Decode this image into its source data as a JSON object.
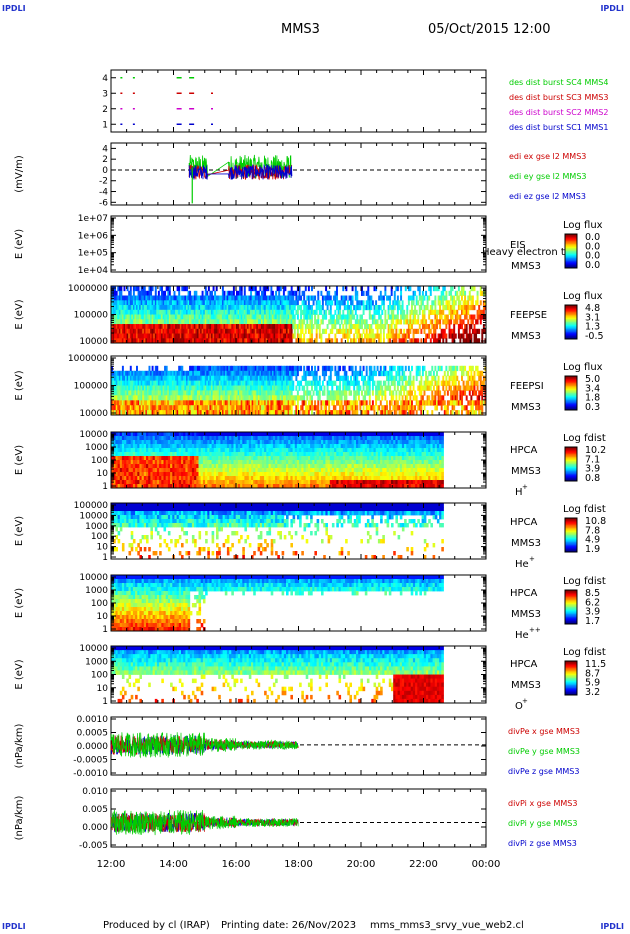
{
  "corners": {
    "top_left": "IPDLI",
    "top_right": "IPDLI",
    "bottom_left": "IPDLI",
    "bottom_right": "IPDLI"
  },
  "header": {
    "spacecraft": "MMS3",
    "datetime": "05/Oct/2015 12:00"
  },
  "footer": {
    "produced": "Produced by cl (IRAP)",
    "printing": "Printing date: 26/Nov/2023",
    "script": "mms_mms3_srvy_vue_web2.cl"
  },
  "colors": {
    "mms1": "#0000cc",
    "mms2": "#cc00cc",
    "mms3": "#cc0000",
    "mms4": "#00cc00",
    "x": "#cc0000",
    "y": "#00cc00",
    "z": "#0000cc"
  },
  "chart_data": [
    {
      "type": "scatter",
      "id": "burst",
      "ylim": [
        0.5,
        4.5
      ],
      "yticks": [
        "1",
        "2",
        "3",
        "4"
      ],
      "series": [
        {
          "name": "des dist burst SC1 MMS1",
          "color": "#0000cc",
          "y": 1,
          "x": [
            12.3,
            12.7,
            14.1,
            14.5,
            15.2
          ]
        },
        {
          "name": "des dist burst SC2 MMS2",
          "color": "#cc00cc",
          "y": 2,
          "x": [
            12.3,
            12.7,
            14.1,
            14.5,
            15.2
          ]
        },
        {
          "name": "des dist burst SC3 MMS3",
          "color": "#cc0000",
          "y": 3,
          "x": [
            12.3,
            12.7,
            14.1,
            14.5,
            15.2
          ]
        },
        {
          "name": "des dist burst SC4 MMS4",
          "color": "#00cc00",
          "y": 4,
          "x": [
            12.3,
            12.7,
            14.1,
            14.5
          ]
        }
      ]
    },
    {
      "type": "line",
      "id": "edi",
      "ylabel": "(mV/m)",
      "ylim": [
        -6.5,
        5
      ],
      "yticks": [
        "4",
        "2",
        "0",
        "-2",
        "-4",
        "-6"
      ],
      "xlim": [
        14.5,
        17.8
      ],
      "series": [
        {
          "name": "edi ex gse l2 MMS3",
          "color": "#cc0000"
        },
        {
          "name": "edi ey gse l2 MMS3",
          "color": "#00cc00"
        },
        {
          "name": "edi ez gse l2 MMS3",
          "color": "#0000cc"
        }
      ]
    },
    {
      "type": "heatmap",
      "id": "eis",
      "ylabel": "E (eV)",
      "yticks": [
        "1e+07",
        "1e+06",
        "1e+05",
        "1e+04"
      ],
      "instrument": "EIS",
      "spacecraft": "MMS3",
      "note": "Heavy electron to",
      "colorbar": {
        "title": "Log flux",
        "ticks": [
          "0.0",
          "0.0",
          "0.0",
          "0.0"
        ]
      }
    },
    {
      "type": "heatmap",
      "id": "feepse",
      "ylabel": "E (eV)",
      "yticks": [
        "1000000",
        "100000",
        "10000"
      ],
      "instrument": "FEEPSE",
      "spacecraft": "MMS3",
      "colorbar": {
        "title": "Log flux",
        "ticks": [
          "4.8",
          "3.1",
          "1.3",
          "-0.5"
        ]
      }
    },
    {
      "type": "heatmap",
      "id": "feepsi",
      "ylabel": "E (eV)",
      "yticks": [
        "1000000",
        "100000",
        "10000"
      ],
      "instrument": "FEEPSI",
      "spacecraft": "MMS3",
      "colorbar": {
        "title": "Log flux",
        "ticks": [
          "5.0",
          "3.4",
          "1.8",
          "0.3"
        ]
      }
    },
    {
      "type": "heatmap",
      "id": "hpca_h",
      "ylabel": "E (eV)",
      "yticks": [
        "10000",
        "1000",
        "100",
        "10",
        "1"
      ],
      "instrument": "HPCA",
      "spacecraft": "MMS3",
      "species": "H",
      "charge": "+",
      "colorbar": {
        "title": "Log fdist",
        "ticks": [
          "10.2",
          "7.1",
          "3.9",
          "0.8"
        ]
      }
    },
    {
      "type": "heatmap",
      "id": "hpca_he",
      "ylabel": "E (eV)",
      "yticks": [
        "100000",
        "10000",
        "1000",
        "100",
        "10",
        "1"
      ],
      "instrument": "HPCA",
      "spacecraft": "MMS3",
      "species": "He",
      "charge": "+",
      "colorbar": {
        "title": "Log fdist",
        "ticks": [
          "10.8",
          "7.8",
          "4.9",
          "1.9"
        ]
      }
    },
    {
      "type": "heatmap",
      "id": "hpca_hepp",
      "ylabel": "E (eV)",
      "yticks": [
        "10000",
        "1000",
        "100",
        "10",
        "1"
      ],
      "instrument": "HPCA",
      "spacecraft": "MMS3",
      "species": "He",
      "charge": "++",
      "colorbar": {
        "title": "Log fdist",
        "ticks": [
          "8.5",
          "6.2",
          "3.9",
          "1.7"
        ]
      }
    },
    {
      "type": "heatmap",
      "id": "hpca_o",
      "ylabel": "E (eV)",
      "yticks": [
        "10000",
        "1000",
        "100",
        "10",
        "1"
      ],
      "instrument": "HPCA",
      "spacecraft": "MMS3",
      "species": "O",
      "charge": "+",
      "colorbar": {
        "title": "Log fdist",
        "ticks": [
          "11.5",
          "8.7",
          "5.9",
          "3.2"
        ]
      }
    },
    {
      "type": "line",
      "id": "divpe",
      "ylabel": "(nPa/km)",
      "yticks": [
        "0.0010",
        "0.0005",
        "0.0000",
        "-0.0005",
        "-0.0010"
      ],
      "xlim": [
        12.0,
        18.0
      ],
      "series": [
        {
          "name": "divPe x gse MMS3",
          "color": "#cc0000"
        },
        {
          "name": "divPe y gse MMS3",
          "color": "#00cc00"
        },
        {
          "name": "divPe z gse MMS3",
          "color": "#0000cc"
        }
      ]
    },
    {
      "type": "line",
      "id": "divpi",
      "ylabel": "(nPa/km)",
      "yticks": [
        "0.010",
        "0.005",
        "0.000",
        "-0.005"
      ],
      "xlim": [
        12.0,
        18.0
      ],
      "series": [
        {
          "name": "divPi x gse MMS3",
          "color": "#cc0000"
        },
        {
          "name": "divPi y gse MMS3",
          "color": "#00cc00"
        },
        {
          "name": "divPi z gse MMS3",
          "color": "#0000cc"
        }
      ]
    }
  ],
  "time_axis": {
    "ticks": [
      "12:00",
      "14:00",
      "16:00",
      "18:00",
      "20:00",
      "22:00",
      "00:00"
    ],
    "xlim": [
      12,
      24
    ]
  }
}
